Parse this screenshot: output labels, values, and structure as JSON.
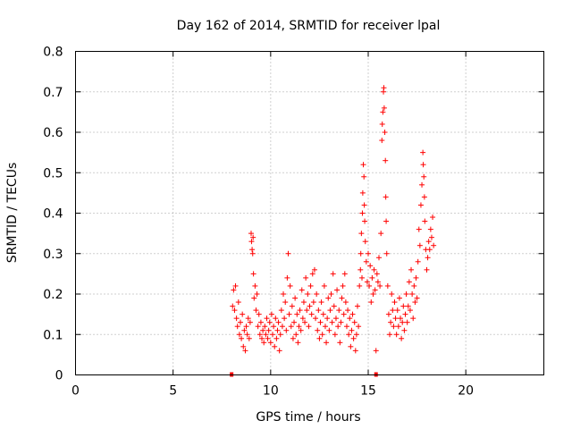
{
  "chart_data": {
    "type": "scatter",
    "title": "Day 162 of 2014, SRMTID for receiver lpal",
    "xlabel": "GPS time / hours",
    "ylabel": "SRMTID / TECUs",
    "xlim": [
      0,
      24
    ],
    "ylim": [
      0,
      0.8
    ],
    "x_ticks": [
      0,
      5,
      10,
      15,
      20
    ],
    "x_tick_labels": [
      "0",
      "5",
      "10",
      "15",
      "20"
    ],
    "y_ticks": [
      0,
      0.1,
      0.2,
      0.3,
      0.4,
      0.5,
      0.6,
      0.7,
      0.8
    ],
    "y_tick_labels": [
      "0",
      "0.1",
      "0.2",
      "0.3",
      "0.4",
      "0.5",
      "0.6",
      "0.7",
      "0.8"
    ],
    "grid": true,
    "marker": "+",
    "color": "#ff0000",
    "series": [
      {
        "name": "SRMTID",
        "points": [
          [
            8.05,
            0.17
          ],
          [
            8.1,
            0.21
          ],
          [
            8.15,
            0.16
          ],
          [
            8.2,
            0.22
          ],
          [
            8.25,
            0.14
          ],
          [
            8.3,
            0.12
          ],
          [
            8.35,
            0.18
          ],
          [
            8.4,
            0.1
          ],
          [
            8.45,
            0.13
          ],
          [
            8.5,
            0.09
          ],
          [
            8.55,
            0.15
          ],
          [
            8.6,
            0.07
          ],
          [
            8.65,
            0.11
          ],
          [
            8.7,
            0.06
          ],
          [
            8.75,
            0.12
          ],
          [
            8.8,
            0.1
          ],
          [
            8.85,
            0.14
          ],
          [
            8.9,
            0.09
          ],
          [
            8.95,
            0.13
          ],
          [
            9.0,
            0.35
          ],
          [
            9.02,
            0.33
          ],
          [
            9.05,
            0.31
          ],
          [
            9.08,
            0.3
          ],
          [
            9.1,
            0.34
          ],
          [
            9.12,
            0.25
          ],
          [
            9.15,
            0.19
          ],
          [
            9.2,
            0.22
          ],
          [
            9.25,
            0.16
          ],
          [
            9.3,
            0.2
          ],
          [
            9.35,
            0.12
          ],
          [
            9.4,
            0.15
          ],
          [
            9.45,
            0.1
          ],
          [
            9.5,
            0.13
          ],
          [
            9.55,
            0.09
          ],
          [
            9.6,
            0.11
          ],
          [
            9.65,
            0.08
          ],
          [
            9.7,
            0.12
          ],
          [
            9.75,
            0.1
          ],
          [
            9.8,
            0.14
          ],
          [
            9.85,
            0.09
          ],
          [
            9.9,
            0.11
          ],
          [
            9.95,
            0.13
          ],
          [
            10.0,
            0.08
          ],
          [
            10.05,
            0.15
          ],
          [
            10.1,
            0.1
          ],
          [
            10.15,
            0.12
          ],
          [
            10.2,
            0.07
          ],
          [
            10.25,
            0.14
          ],
          [
            10.3,
            0.09
          ],
          [
            10.35,
            0.11
          ],
          [
            10.4,
            0.13
          ],
          [
            10.45,
            0.06
          ],
          [
            10.5,
            0.1
          ],
          [
            10.55,
            0.16
          ],
          [
            10.6,
            0.12
          ],
          [
            10.65,
            0.2
          ],
          [
            10.7,
            0.14
          ],
          [
            10.75,
            0.18
          ],
          [
            10.8,
            0.11
          ],
          [
            10.85,
            0.24
          ],
          [
            10.9,
            0.3
          ],
          [
            10.95,
            0.15
          ],
          [
            11.0,
            0.22
          ],
          [
            11.05,
            0.12
          ],
          [
            11.1,
            0.17
          ],
          [
            11.15,
            0.09
          ],
          [
            11.2,
            0.13
          ],
          [
            11.25,
            0.19
          ],
          [
            11.3,
            0.1
          ],
          [
            11.35,
            0.15
          ],
          [
            11.4,
            0.08
          ],
          [
            11.45,
            0.12
          ],
          [
            11.5,
            0.16
          ],
          [
            11.55,
            0.11
          ],
          [
            11.6,
            0.21
          ],
          [
            11.65,
            0.14
          ],
          [
            11.7,
            0.18
          ],
          [
            11.75,
            0.13
          ],
          [
            11.8,
            0.24
          ],
          [
            11.85,
            0.16
          ],
          [
            11.9,
            0.2
          ],
          [
            11.95,
            0.12
          ],
          [
            12.0,
            0.17
          ],
          [
            12.05,
            0.22
          ],
          [
            12.1,
            0.15
          ],
          [
            12.15,
            0.25
          ],
          [
            12.2,
            0.18
          ],
          [
            12.25,
            0.26
          ],
          [
            12.3,
            0.14
          ],
          [
            12.35,
            0.2
          ],
          [
            12.4,
            0.11
          ],
          [
            12.45,
            0.16
          ],
          [
            12.5,
            0.09
          ],
          [
            12.55,
            0.13
          ],
          [
            12.6,
            0.18
          ],
          [
            12.65,
            0.1
          ],
          [
            12.7,
            0.15
          ],
          [
            12.75,
            0.22
          ],
          [
            12.8,
            0.12
          ],
          [
            12.85,
            0.08
          ],
          [
            12.9,
            0.14
          ],
          [
            12.95,
            0.19
          ],
          [
            13.0,
            0.11
          ],
          [
            13.05,
            0.16
          ],
          [
            13.1,
            0.2
          ],
          [
            13.15,
            0.13
          ],
          [
            13.2,
            0.25
          ],
          [
            13.25,
            0.17
          ],
          [
            13.3,
            0.1
          ],
          [
            13.35,
            0.14
          ],
          [
            13.4,
            0.21
          ],
          [
            13.45,
            0.12
          ],
          [
            13.5,
            0.16
          ],
          [
            13.55,
            0.08
          ],
          [
            13.6,
            0.13
          ],
          [
            13.65,
            0.19
          ],
          [
            13.7,
            0.22
          ],
          [
            13.75,
            0.15
          ],
          [
            13.8,
            0.25
          ],
          [
            13.85,
            0.18
          ],
          [
            13.9,
            0.12
          ],
          [
            13.95,
            0.16
          ],
          [
            14.0,
            0.1
          ],
          [
            14.05,
            0.14
          ],
          [
            14.1,
            0.07
          ],
          [
            14.15,
            0.11
          ],
          [
            14.2,
            0.15
          ],
          [
            14.25,
            0.09
          ],
          [
            14.3,
            0.13
          ],
          [
            14.35,
            0.06
          ],
          [
            14.4,
            0.1
          ],
          [
            14.45,
            0.17
          ],
          [
            14.5,
            0.12
          ],
          [
            14.55,
            0.22
          ],
          [
            14.6,
            0.26
          ],
          [
            14.62,
            0.3
          ],
          [
            14.65,
            0.35
          ],
          [
            14.68,
            0.24
          ],
          [
            14.7,
            0.4
          ],
          [
            14.72,
            0.45
          ],
          [
            14.75,
            0.52
          ],
          [
            14.78,
            0.49
          ],
          [
            14.8,
            0.42
          ],
          [
            14.82,
            0.38
          ],
          [
            14.85,
            0.33
          ],
          [
            14.9,
            0.28
          ],
          [
            14.95,
            0.23
          ],
          [
            15.0,
            0.3
          ],
          [
            15.05,
            0.22
          ],
          [
            15.1,
            0.27
          ],
          [
            15.15,
            0.18
          ],
          [
            15.2,
            0.24
          ],
          [
            15.25,
            0.2
          ],
          [
            15.3,
            0.26
          ],
          [
            15.35,
            0.21
          ],
          [
            15.4,
            0.06
          ],
          [
            15.45,
            0.25
          ],
          [
            15.5,
            0.23
          ],
          [
            15.55,
            0.29
          ],
          [
            15.6,
            0.22
          ],
          [
            15.65,
            0.35
          ],
          [
            15.7,
            0.58
          ],
          [
            15.72,
            0.62
          ],
          [
            15.75,
            0.65
          ],
          [
            15.78,
            0.7
          ],
          [
            15.8,
            0.71
          ],
          [
            15.82,
            0.66
          ],
          [
            15.85,
            0.6
          ],
          [
            15.88,
            0.53
          ],
          [
            15.9,
            0.44
          ],
          [
            15.92,
            0.38
          ],
          [
            15.95,
            0.3
          ],
          [
            16.0,
            0.22
          ],
          [
            16.05,
            0.15
          ],
          [
            16.1,
            0.1
          ],
          [
            16.15,
            0.13
          ],
          [
            16.2,
            0.2
          ],
          [
            16.25,
            0.16
          ],
          [
            16.3,
            0.12
          ],
          [
            16.35,
            0.18
          ],
          [
            16.4,
            0.14
          ],
          [
            16.45,
            0.1
          ],
          [
            16.5,
            0.16
          ],
          [
            16.55,
            0.12
          ],
          [
            16.6,
            0.19
          ],
          [
            16.65,
            0.14
          ],
          [
            16.7,
            0.09
          ],
          [
            16.75,
            0.13
          ],
          [
            16.8,
            0.17
          ],
          [
            16.85,
            0.11
          ],
          [
            16.9,
            0.15
          ],
          [
            16.95,
            0.2
          ],
          [
            17.0,
            0.13
          ],
          [
            17.05,
            0.17
          ],
          [
            17.1,
            0.23
          ],
          [
            17.15,
            0.16
          ],
          [
            17.2,
            0.26
          ],
          [
            17.25,
            0.2
          ],
          [
            17.3,
            0.14
          ],
          [
            17.35,
            0.22
          ],
          [
            17.4,
            0.18
          ],
          [
            17.45,
            0.24
          ],
          [
            17.5,
            0.19
          ],
          [
            17.55,
            0.28
          ],
          [
            17.6,
            0.36
          ],
          [
            17.65,
            0.32
          ],
          [
            17.7,
            0.42
          ],
          [
            17.75,
            0.47
          ],
          [
            17.8,
            0.55
          ],
          [
            17.82,
            0.52
          ],
          [
            17.85,
            0.49
          ],
          [
            17.88,
            0.44
          ],
          [
            17.9,
            0.38
          ],
          [
            17.95,
            0.31
          ],
          [
            18.0,
            0.26
          ],
          [
            18.05,
            0.29
          ],
          [
            18.1,
            0.33
          ],
          [
            18.15,
            0.31
          ],
          [
            18.2,
            0.36
          ],
          [
            18.25,
            0.34
          ],
          [
            18.3,
            0.39
          ],
          [
            18.35,
            0.32
          ]
        ]
      }
    ],
    "axis_markers": [
      8.0,
      15.4
    ]
  }
}
